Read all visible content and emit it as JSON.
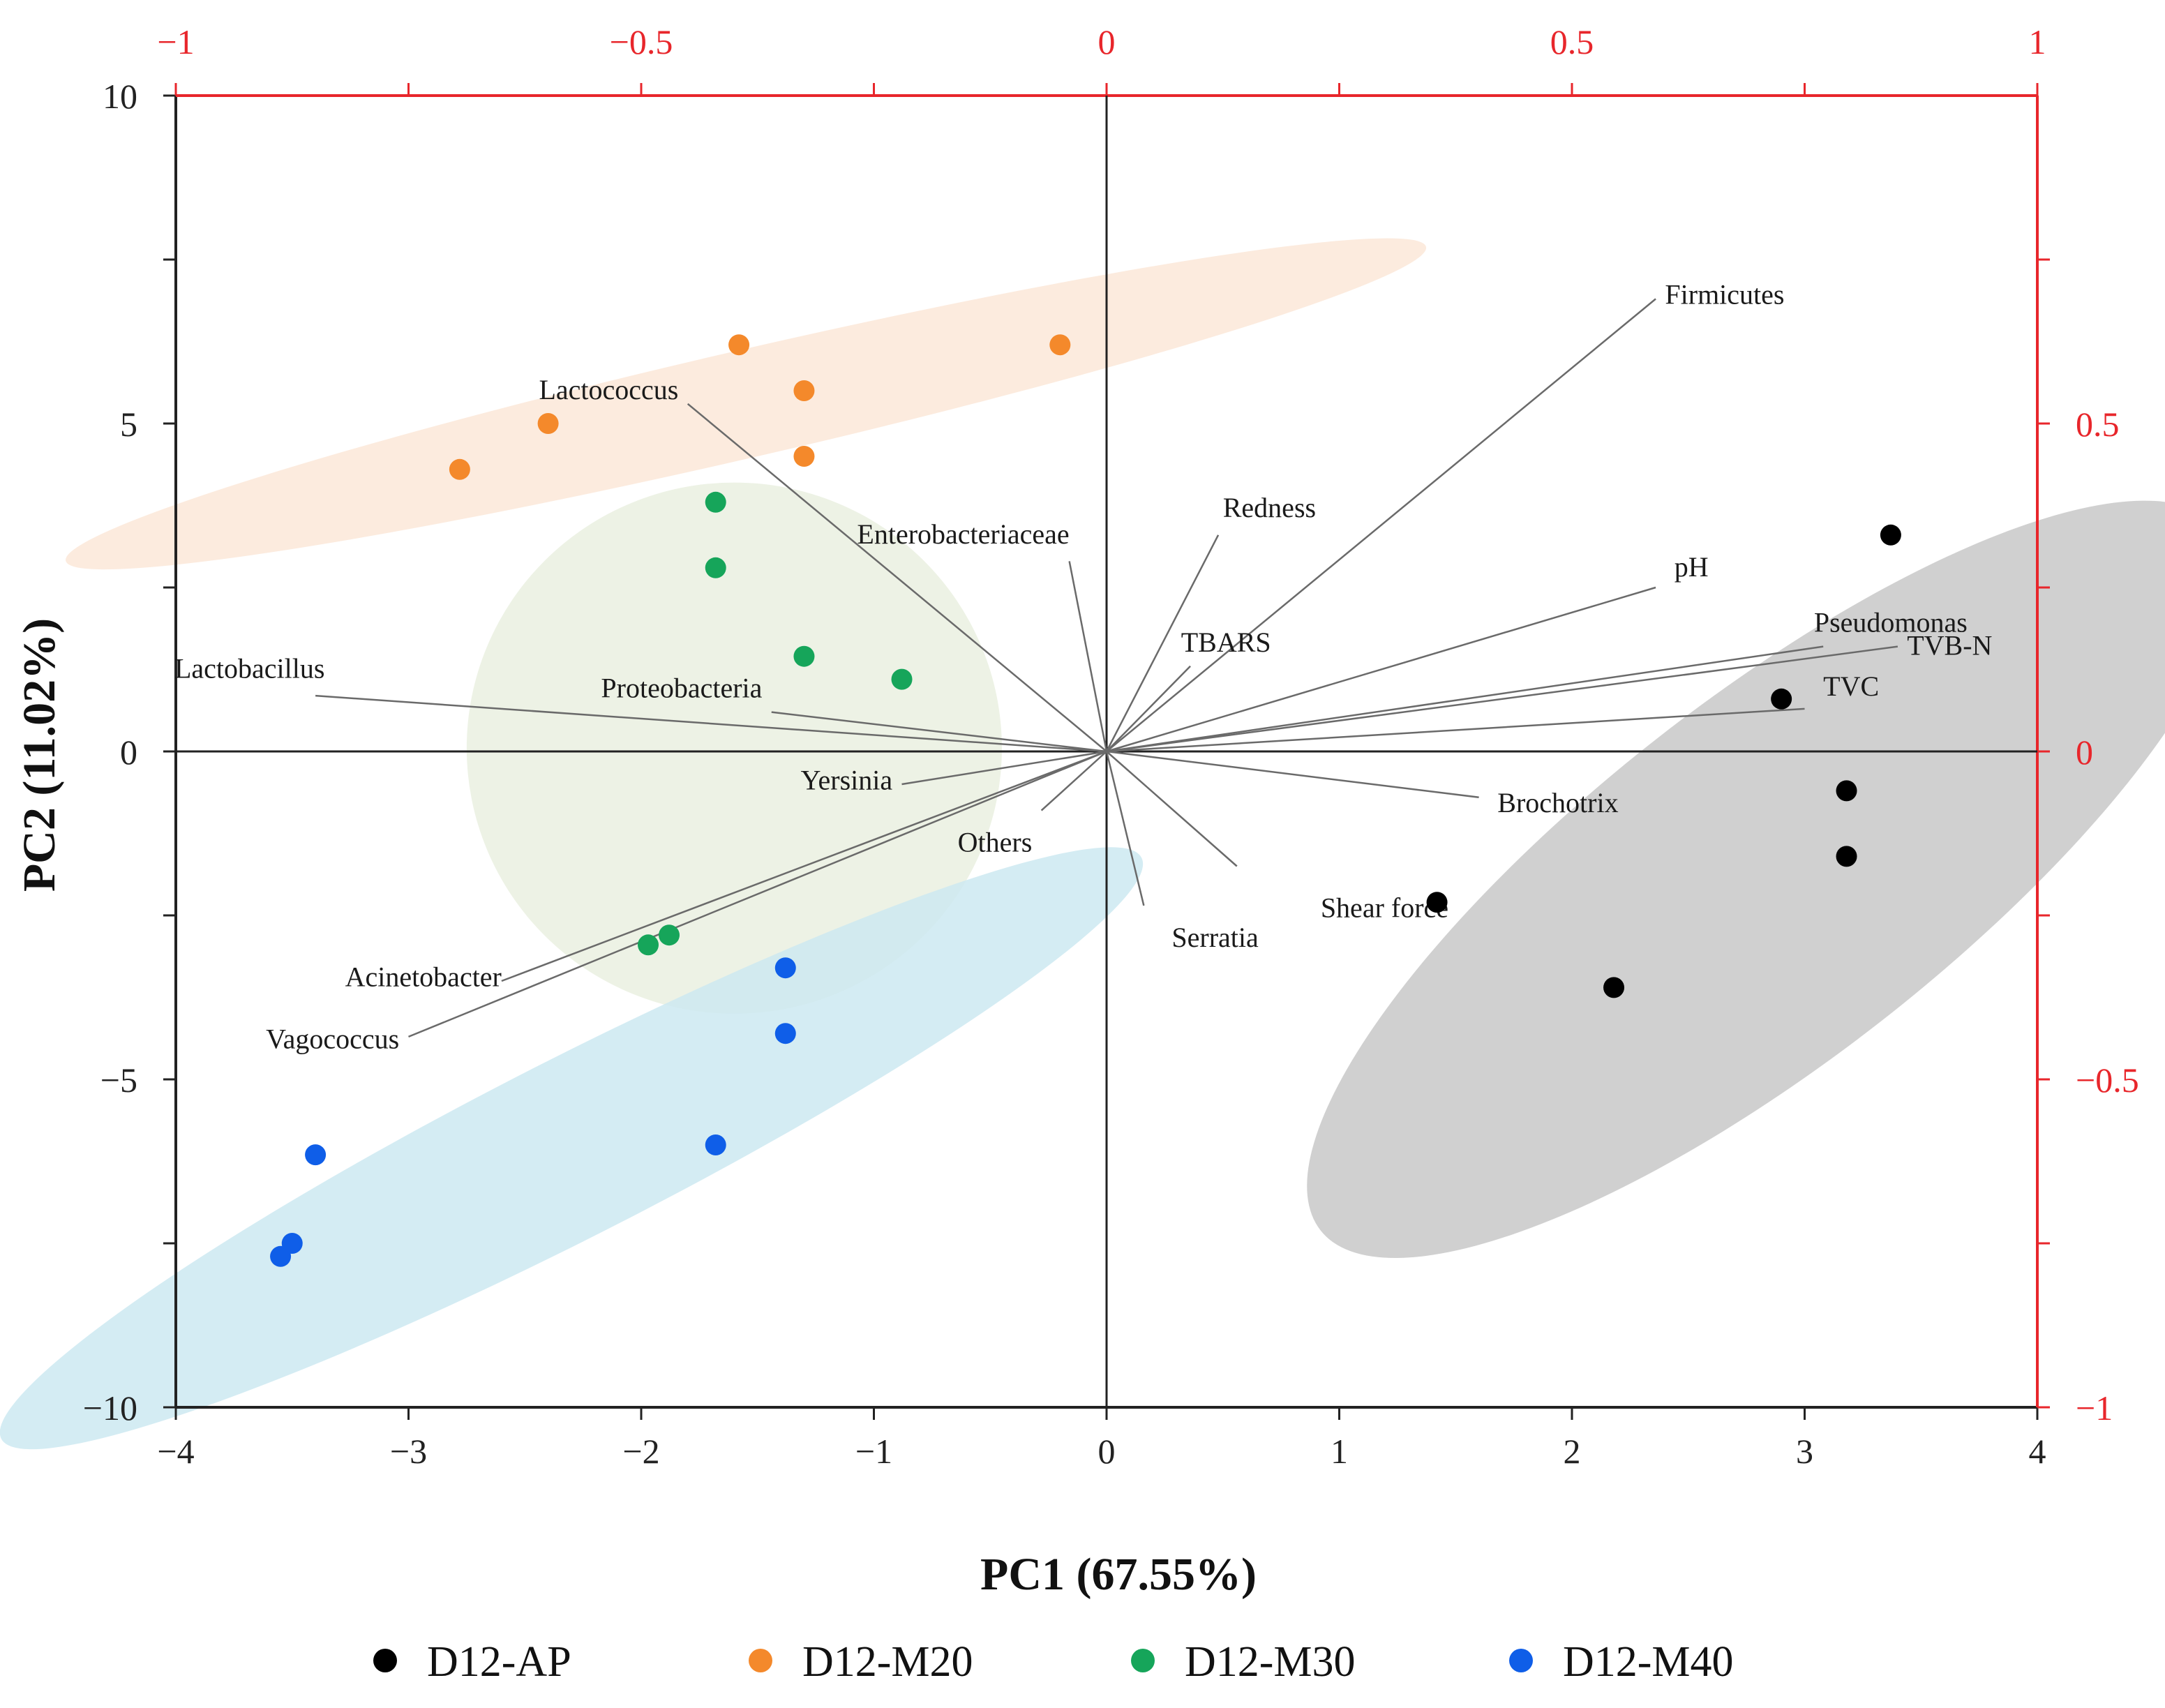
{
  "chart_data": {
    "type": "scatter",
    "subtype": "pca-biplot",
    "xlabel": "PC1 (67.55%)",
    "ylabel": "PC2 (11.02%)",
    "xlim": [
      -4,
      4
    ],
    "ylim": [
      -10,
      10
    ],
    "x_ticks": [
      -4,
      -3,
      -2,
      -1,
      0,
      1,
      2,
      3,
      4
    ],
    "x_tick_labels": [
      "−4",
      "−3",
      "−2",
      "−1",
      "0",
      "1",
      "2",
      "3",
      "4"
    ],
    "y_ticks": [
      -10,
      -5,
      0,
      5,
      10
    ],
    "y_tick_labels": [
      "−10",
      "−5",
      "0",
      "5",
      "10"
    ],
    "secondary_axis_color": "#e8262b",
    "secondary_xlim": [
      -1,
      1
    ],
    "secondary_ylim": [
      -1,
      1
    ],
    "secondary_x_ticks": [
      -1,
      -0.5,
      0,
      0.5,
      1
    ],
    "secondary_x_tick_labels": [
      "−1",
      "−0.5",
      "0",
      "0.5",
      "1"
    ],
    "secondary_y_ticks": [
      -1,
      -0.5,
      0,
      0.5
    ],
    "secondary_y_tick_labels": [
      "−1",
      "−0.5",
      "0",
      "0.5"
    ],
    "series": [
      {
        "name": "D12-AP",
        "color": "#000000",
        "ellipse": {
          "color": "#c8c8c8",
          "cx": 2.85,
          "cy": -1.95,
          "rx": 2.45,
          "ry": 2.75,
          "angle": 38
        },
        "points": [
          [
            3.37,
            3.3
          ],
          [
            2.9,
            0.8
          ],
          [
            3.18,
            -0.6
          ],
          [
            3.18,
            -1.6
          ],
          [
            1.42,
            -2.3
          ],
          [
            2.18,
            -3.6
          ]
        ]
      },
      {
        "name": "D12-M20",
        "color": "#f4892b",
        "ellipse": {
          "color": "#fce7d8",
          "cx": -1.55,
          "cy": 5.3,
          "rx": 3.0,
          "ry": 0.82,
          "angle": 13
        },
        "points": [
          [
            -1.58,
            6.2
          ],
          [
            -0.2,
            6.2
          ],
          [
            -1.3,
            5.5
          ],
          [
            -2.4,
            5.0
          ],
          [
            -1.3,
            4.5
          ],
          [
            -2.78,
            4.3
          ]
        ]
      },
      {
        "name": "D12-M30",
        "color": "#16a55a",
        "ellipse": {
          "color": "#eaf0e0",
          "cx": -1.6,
          "cy": 0.05,
          "rx": 1.15,
          "ry": 4.05,
          "angle": 0
        },
        "points": [
          [
            -1.68,
            3.8
          ],
          [
            -1.68,
            2.8
          ],
          [
            -1.3,
            1.45
          ],
          [
            -0.88,
            1.1
          ],
          [
            -1.88,
            -2.8
          ],
          [
            -1.97,
            -2.95
          ]
        ]
      },
      {
        "name": "D12-M40",
        "color": "#0f5ee8",
        "ellipse": {
          "color": "#cce9f1",
          "cx": -2.3,
          "cy": -6.05,
          "rx": 2.75,
          "ry": 1.35,
          "angle": 27
        },
        "points": [
          [
            -1.38,
            -3.3
          ],
          [
            -1.38,
            -4.3
          ],
          [
            -1.68,
            -6.0
          ],
          [
            -3.4,
            -6.15
          ],
          [
            -3.5,
            -7.5
          ],
          [
            -3.55,
            -7.7
          ]
        ]
      }
    ],
    "loadings": [
      {
        "name": "Firmicutes",
        "end": [
          0.59,
          0.69
        ],
        "label_at": [
          0.6,
          0.695
        ]
      },
      {
        "name": "Lactococcus",
        "end": [
          -0.45,
          0.53
        ],
        "label_at": [
          -0.46,
          0.55
        ]
      },
      {
        "name": "Redness",
        "end": [
          0.12,
          0.33
        ],
        "label_at": [
          0.125,
          0.37
        ]
      },
      {
        "name": "pH",
        "end": [
          0.59,
          0.25
        ],
        "label_at": [
          0.61,
          0.28
        ]
      },
      {
        "name": "Enterobacteriaceae",
        "end": [
          -0.04,
          0.29
        ],
        "label_at": [
          -0.04,
          0.33
        ]
      },
      {
        "name": "Pseudomonas",
        "end": [
          0.77,
          0.16
        ],
        "label_at": [
          0.76,
          0.195
        ]
      },
      {
        "name": "TVB-N",
        "end": [
          0.85,
          0.16
        ],
        "label_at": [
          0.86,
          0.16
        ]
      },
      {
        "name": "TBARS",
        "end": [
          0.09,
          0.13
        ],
        "label_at": [
          0.08,
          0.165
        ]
      },
      {
        "name": "TVC",
        "end": [
          0.75,
          0.065
        ],
        "label_at": [
          0.77,
          0.098
        ]
      },
      {
        "name": "Lactobacillus",
        "end": [
          -0.85,
          0.085
        ],
        "label_at": [
          -0.84,
          0.125
        ]
      },
      {
        "name": "Proteobacteria",
        "end": [
          -0.36,
          0.06
        ],
        "label_at": [
          -0.37,
          0.095
        ]
      },
      {
        "name": "Yersinia",
        "end": [
          -0.22,
          -0.05
        ],
        "label_at": [
          -0.23,
          -0.045
        ]
      },
      {
        "name": "Brochotrix",
        "end": [
          0.4,
          -0.07
        ],
        "label_at": [
          0.42,
          -0.08
        ]
      },
      {
        "name": "Others",
        "end": [
          -0.07,
          -0.09
        ],
        "label_at": [
          -0.08,
          -0.14
        ]
      },
      {
        "name": "Shear force",
        "end": [
          0.14,
          -0.175
        ],
        "label_at": [
          0.23,
          -0.24
        ]
      },
      {
        "name": "Serratia",
        "end": [
          0.04,
          -0.235
        ],
        "label_at": [
          0.07,
          -0.285
        ]
      },
      {
        "name": "Acinetobacter",
        "end": [
          -0.65,
          -0.35
        ],
        "label_at": [
          -0.65,
          -0.345
        ]
      },
      {
        "name": "Vagococcus",
        "end": [
          -0.75,
          -0.435
        ],
        "label_at": [
          -0.76,
          -0.44
        ]
      }
    ]
  }
}
